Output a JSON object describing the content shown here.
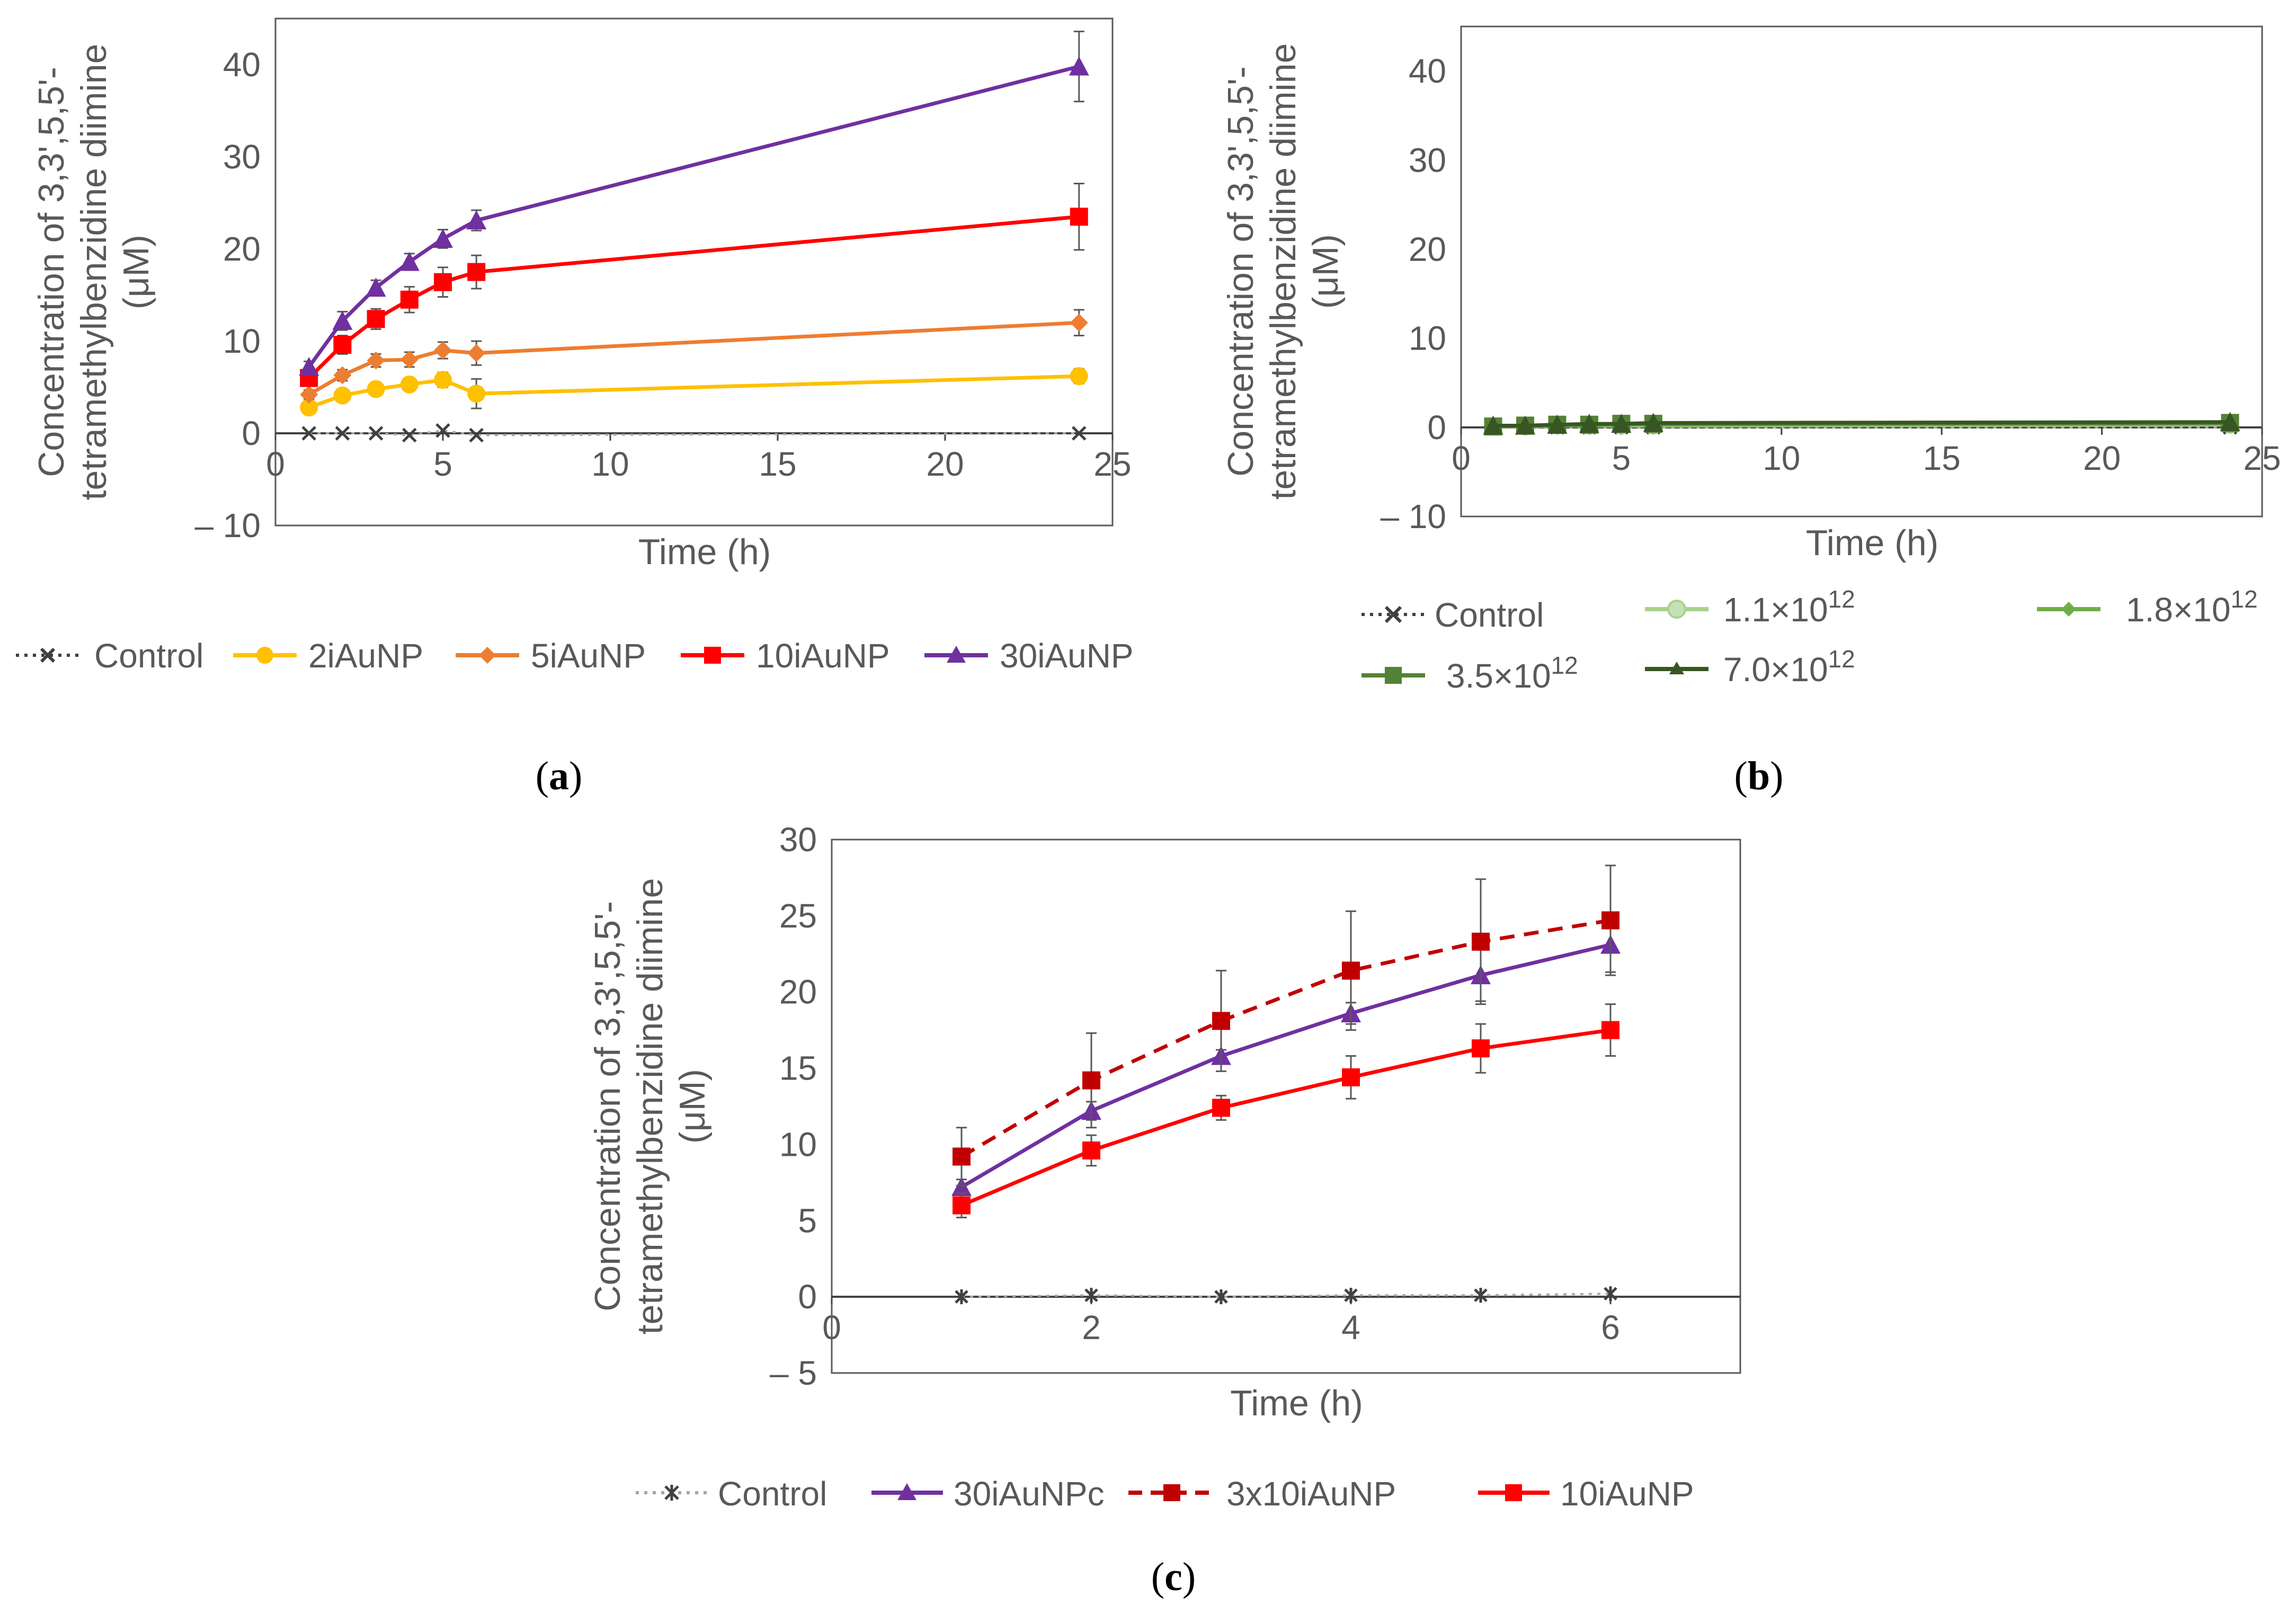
{
  "chart_data": [
    {
      "id": "a",
      "type": "line",
      "caption_letter": "a",
      "xlabel": "Time (h)",
      "ylabel_lines": [
        "Concentration of 3,3',5,5'-",
        "tetramethylbenzidine diimine",
        "(μM)"
      ],
      "xlim": [
        0,
        25
      ],
      "ylim": [
        -10,
        45
      ],
      "xticks": [
        0,
        5,
        10,
        15,
        20,
        25
      ],
      "yticks": [
        -10,
        0,
        10,
        20,
        30,
        40
      ],
      "xtick_labels": [
        "0",
        "5",
        "10",
        "15",
        "20",
        "25"
      ],
      "ytick_labels": [
        "– 10",
        "0",
        "10",
        "20",
        "30",
        "40"
      ],
      "x": [
        1,
        2,
        3,
        4,
        5,
        6,
        24
      ],
      "series": [
        {
          "name": "Control",
          "color": "#404040",
          "marker": "x",
          "dashed": "dot",
          "values": [
            0,
            0,
            0,
            -0.2,
            0.3,
            -0.2,
            0
          ],
          "err": [
            0,
            0,
            0,
            0,
            0,
            0,
            0
          ]
        },
        {
          "name": "2iAuNP",
          "color": "#FFC000",
          "marker": "circle",
          "dashed": "",
          "values": [
            2.8,
            4.1,
            4.8,
            5.3,
            5.8,
            4.3,
            6.2
          ],
          "err": [
            0.5,
            0.6,
            0.6,
            0.7,
            0.8,
            1.6,
            0.8
          ]
        },
        {
          "name": "5iAuNP",
          "color": "#ED7D31",
          "marker": "diamond",
          "dashed": "",
          "values": [
            4.2,
            6.3,
            7.9,
            8.0,
            9.0,
            8.7,
            12.0
          ],
          "err": [
            0.5,
            0.6,
            0.7,
            0.8,
            0.9,
            1.3,
            1.4
          ]
        },
        {
          "name": "10iAuNP",
          "color": "#FF0000",
          "marker": "square",
          "dashed": "",
          "values": [
            6.0,
            9.6,
            12.4,
            14.5,
            16.4,
            17.5,
            23.5
          ],
          "err": [
            0.8,
            1.0,
            1.1,
            1.4,
            1.6,
            1.8,
            3.6
          ]
        },
        {
          "name": "30iAuNP",
          "color": "#7030A0",
          "marker": "triangle",
          "dashed": "",
          "values": [
            7.2,
            12.2,
            15.8,
            18.6,
            21.1,
            23.1,
            39.8
          ],
          "err": [
            0.6,
            1.0,
            0.8,
            0.9,
            1.0,
            1.1,
            3.8
          ]
        }
      ]
    },
    {
      "id": "b",
      "type": "line",
      "caption_letter": "b",
      "xlabel": "Time (h)",
      "ylabel_lines": [
        "Concentration of 3,3',5,5'-",
        "tetramethylbenzidine diimine",
        "(μM)"
      ],
      "xlim": [
        0,
        25
      ],
      "ylim": [
        -10,
        45
      ],
      "xticks": [
        0,
        5,
        10,
        15,
        20,
        25
      ],
      "yticks": [
        -10,
        0,
        10,
        20,
        30,
        40
      ],
      "xtick_labels": [
        "0",
        "5",
        "10",
        "15",
        "20",
        "25"
      ],
      "ytick_labels": [
        "– 10",
        "0",
        "10",
        "20",
        "30",
        "40"
      ],
      "x": [
        1,
        2,
        3,
        4,
        5,
        6,
        24
      ],
      "series": [
        {
          "name": "Control",
          "color": "#404040",
          "marker": "x",
          "dashed": "dot",
          "values": [
            0,
            0,
            0,
            0,
            0,
            0,
            0
          ],
          "err": [
            0,
            0,
            0,
            0,
            0,
            0,
            0
          ]
        },
        {
          "name": "1.1×10¹²",
          "color": "#A9D18E",
          "marker": "circle",
          "dashed": "",
          "values": [
            0.1,
            0.1,
            0.2,
            0.2,
            0.2,
            0.2,
            0.3
          ],
          "err": [
            0,
            0,
            0,
            0,
            0,
            0,
            0
          ]
        },
        {
          "name": "1.8×10¹²",
          "color": "#70AD47",
          "marker": "diamond",
          "dashed": "",
          "values": [
            0.1,
            0.1,
            0.2,
            0.2,
            0.3,
            0.3,
            0.4
          ],
          "err": [
            0,
            0,
            0,
            0,
            0,
            0,
            0
          ]
        },
        {
          "name": "3.5×10¹²",
          "color": "#548235",
          "marker": "square",
          "dashed": "",
          "values": [
            0.1,
            0.2,
            0.3,
            0.3,
            0.4,
            0.4,
            0.5
          ],
          "err": [
            0,
            0,
            0,
            0,
            0,
            0,
            0
          ]
        },
        {
          "name": "7.0×10¹²",
          "color": "#375623",
          "marker": "triangle",
          "dashed": "",
          "values": [
            0.2,
            0.2,
            0.3,
            0.4,
            0.4,
            0.5,
            0.6
          ],
          "err": [
            0,
            0,
            0,
            0,
            0,
            0,
            0
          ]
        }
      ]
    },
    {
      "id": "c",
      "type": "line",
      "caption_letter": "c",
      "xlabel": "Time (h)",
      "ylabel_lines": [
        "Concentration of 3,3',5,5'-",
        "tetramethylbenzidine diimine",
        "(μM)"
      ],
      "xlim": [
        0,
        7
      ],
      "ylim": [
        -5,
        30
      ],
      "xticks": [
        0,
        2,
        4,
        6
      ],
      "yticks": [
        -5,
        0,
        5,
        10,
        15,
        20,
        25,
        30
      ],
      "xtick_labels": [
        "0",
        "2",
        "4",
        "6"
      ],
      "ytick_labels": [
        "– 5",
        "0",
        "5",
        "10",
        "15",
        "20",
        "25",
        "30"
      ],
      "x": [
        1,
        2,
        3,
        4,
        5,
        6
      ],
      "series": [
        {
          "name": "Control",
          "color": "#404040",
          "marker": "star",
          "dashed": "dot",
          "values": [
            0,
            0.1,
            0,
            0.1,
            0.1,
            0.2
          ],
          "err": [
            0,
            0,
            0,
            0,
            0,
            0
          ]
        },
        {
          "name": "30iAuNPc",
          "color": "#7030A0",
          "marker": "triangle",
          "dashed": "",
          "values": [
            7.2,
            12.2,
            15.8,
            18.6,
            21.1,
            23.1
          ],
          "err": [
            0.5,
            0.6,
            0.4,
            0.7,
            1.7,
            1.8
          ]
        },
        {
          "name": "3x10iAuNP",
          "color": "#C00000",
          "marker": "square",
          "dashed": "dash",
          "values": [
            9.2,
            14.2,
            18.1,
            21.4,
            23.3,
            24.7
          ],
          "err": [
            1.9,
            3.1,
            3.3,
            3.9,
            4.1,
            3.6
          ]
        },
        {
          "name": "10iAuNP",
          "color": "#FF0000",
          "marker": "square",
          "dashed": "",
          "values": [
            6.0,
            9.6,
            12.4,
            14.4,
            16.3,
            17.5
          ],
          "err": [
            0.8,
            1.0,
            0.8,
            1.4,
            1.6,
            1.7
          ]
        }
      ]
    }
  ],
  "legend_a": [
    "Control",
    "2iAuNP",
    "5iAuNP",
    "10iAuNP",
    "30iAuNP"
  ],
  "legend_b": [
    "Control",
    "1.1×10",
    "1.8×10",
    "3.5×10",
    "7.0×10"
  ],
  "legend_b_exp": "12",
  "legend_c": [
    "Control",
    "30iAuNPc",
    "3x10iAuNP",
    "10iAuNP"
  ]
}
